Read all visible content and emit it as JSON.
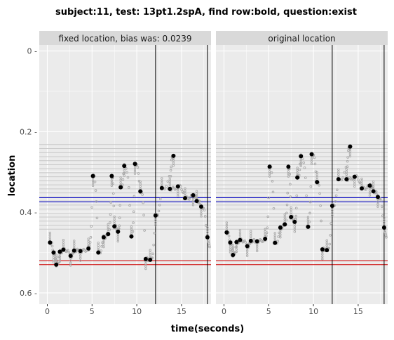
{
  "chart_data": {
    "type": "scatter",
    "title": "subject:11, test: 13pt1.2spA, find row:bold, question:exist",
    "xlabel": "time(seconds)",
    "ylabel": "location",
    "xlim": [
      -0.9,
      18.3
    ],
    "ylim": [
      0.628,
      -0.015
    ],
    "y_reversed": true,
    "x_ticks": [
      0,
      5,
      10,
      15
    ],
    "x_tick_labels": [
      "0",
      "5",
      "10",
      "15"
    ],
    "y_ticks": [
      0.0,
      0.2,
      0.4,
      0.6
    ],
    "y_tick_labels": [
      "0 -",
      "0.2 -",
      "0.4 -",
      "0.6 -"
    ],
    "grid": true,
    "colors": {
      "panel_bg": "#ebebeb",
      "strip_bg": "#d9d9d9",
      "grid": "#ffffff",
      "row_lines": "#c8c8c8",
      "blue": "#0000cc",
      "red": "#cc0000",
      "point": "#000000",
      "trace": "#a6a6a6"
    },
    "row_lines": [
      0.232,
      0.242,
      0.252,
      0.262,
      0.272,
      0.282,
      0.292,
      0.302,
      0.312,
      0.322,
      0.332,
      0.342,
      0.352,
      0.362,
      0.372,
      0.382,
      0.392,
      0.402,
      0.412,
      0.422,
      0.432,
      0.442
    ],
    "hlines_blue": [
      0.364,
      0.374
    ],
    "hlines_red": [
      0.52,
      0.53
    ],
    "vlines": [
      12.1,
      17.9
    ],
    "facets": [
      {
        "label": "fixed location, bias was: 0.0239",
        "fixations": [
          {
            "x": 0.3,
            "y": 0.475
          },
          {
            "x": 0.7,
            "y": 0.5
          },
          {
            "x": 1.0,
            "y": 0.53
          },
          {
            "x": 1.4,
            "y": 0.498
          },
          {
            "x": 1.8,
            "y": 0.493
          },
          {
            "x": 2.6,
            "y": 0.508
          },
          {
            "x": 3.0,
            "y": 0.495
          },
          {
            "x": 3.7,
            "y": 0.496
          },
          {
            "x": 4.6,
            "y": 0.49
          },
          {
            "x": 5.1,
            "y": 0.31
          },
          {
            "x": 5.7,
            "y": 0.5
          },
          {
            "x": 6.3,
            "y": 0.462
          },
          {
            "x": 6.8,
            "y": 0.454
          },
          {
            "x": 7.2,
            "y": 0.31
          },
          {
            "x": 7.5,
            "y": 0.435
          },
          {
            "x": 7.9,
            "y": 0.448
          },
          {
            "x": 8.2,
            "y": 0.338
          },
          {
            "x": 8.6,
            "y": 0.285
          },
          {
            "x": 9.4,
            "y": 0.46
          },
          {
            "x": 9.8,
            "y": 0.28
          },
          {
            "x": 10.4,
            "y": 0.348
          },
          {
            "x": 11.0,
            "y": 0.516
          },
          {
            "x": 11.5,
            "y": 0.518
          },
          {
            "x": 12.1,
            "y": 0.408
          },
          {
            "x": 12.8,
            "y": 0.34
          },
          {
            "x": 14.1,
            "y": 0.26
          },
          {
            "x": 13.7,
            "y": 0.342
          },
          {
            "x": 14.6,
            "y": 0.336
          },
          {
            "x": 15.4,
            "y": 0.365
          },
          {
            "x": 16.3,
            "y": 0.358
          },
          {
            "x": 16.7,
            "y": 0.372
          },
          {
            "x": 17.2,
            "y": 0.386
          },
          {
            "x": 17.9,
            "y": 0.462
          }
        ]
      },
      {
        "label": "original location",
        "fixations": [
          {
            "x": 0.3,
            "y": 0.45
          },
          {
            "x": 0.7,
            "y": 0.475
          },
          {
            "x": 1.0,
            "y": 0.506
          },
          {
            "x": 1.4,
            "y": 0.474
          },
          {
            "x": 1.8,
            "y": 0.469
          },
          {
            "x": 2.6,
            "y": 0.484
          },
          {
            "x": 3.0,
            "y": 0.471
          },
          {
            "x": 3.7,
            "y": 0.472
          },
          {
            "x": 4.6,
            "y": 0.466
          },
          {
            "x": 5.1,
            "y": 0.287
          },
          {
            "x": 5.7,
            "y": 0.476
          },
          {
            "x": 6.3,
            "y": 0.438
          },
          {
            "x": 6.8,
            "y": 0.43
          },
          {
            "x": 7.2,
            "y": 0.287
          },
          {
            "x": 7.5,
            "y": 0.412
          },
          {
            "x": 7.9,
            "y": 0.424
          },
          {
            "x": 8.2,
            "y": 0.314
          },
          {
            "x": 8.6,
            "y": 0.261
          },
          {
            "x": 9.4,
            "y": 0.436
          },
          {
            "x": 9.8,
            "y": 0.256
          },
          {
            "x": 10.4,
            "y": 0.325
          },
          {
            "x": 11.0,
            "y": 0.492
          },
          {
            "x": 11.5,
            "y": 0.494
          },
          {
            "x": 12.1,
            "y": 0.384
          },
          {
            "x": 12.8,
            "y": 0.318
          },
          {
            "x": 14.1,
            "y": 0.237
          },
          {
            "x": 13.7,
            "y": 0.318
          },
          {
            "x": 14.6,
            "y": 0.312
          },
          {
            "x": 15.4,
            "y": 0.341
          },
          {
            "x": 16.3,
            "y": 0.334
          },
          {
            "x": 16.7,
            "y": 0.348
          },
          {
            "x": 17.2,
            "y": 0.362
          },
          {
            "x": 17.9,
            "y": 0.438
          }
        ]
      }
    ]
  }
}
